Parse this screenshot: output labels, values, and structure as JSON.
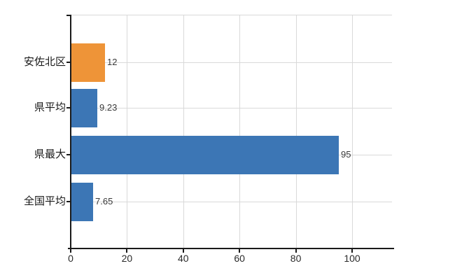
{
  "chart_data": {
    "type": "bar",
    "orientation": "horizontal",
    "title": "",
    "xlabel": "",
    "ylabel": "",
    "categories": [
      "安佐北区",
      "県平均",
      "県最大",
      "全国平均"
    ],
    "values": [
      12,
      9.23,
      95,
      7.65
    ],
    "value_labels": [
      "12",
      "9.23",
      "95",
      "7.65"
    ],
    "bar_colors": [
      "#ee9438",
      "#3c76b5",
      "#3c76b5",
      "#3c76b5"
    ],
    "x_ticks": [
      0,
      20,
      40,
      60,
      80,
      100
    ],
    "x_tick_labels": [
      "0",
      "20",
      "40",
      "60",
      "80",
      "100"
    ],
    "xlim": [
      0,
      114
    ],
    "grid": true,
    "legend": "none"
  },
  "colors": {
    "bar_blue": "#3c76b5",
    "bar_orange": "#ee9438",
    "gridline": "#d9d9d9",
    "axis": "#1a1a1a",
    "category_text": "#1a1a1a",
    "value_text": "#3a3a3a"
  }
}
